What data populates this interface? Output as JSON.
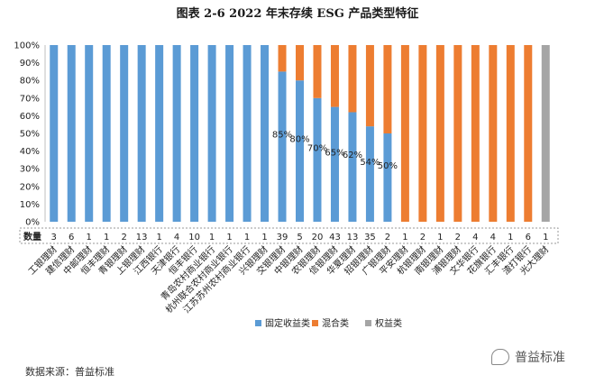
{
  "chart_data": {
    "type": "bar",
    "stacked": true,
    "title": "图表 2-6  2022 年末存续 ESG 产品类型特征",
    "ylim": [
      0,
      100
    ],
    "y_ticks": [
      "0%",
      "10%",
      "20%",
      "30%",
      "40%",
      "50%",
      "60%",
      "70%",
      "80%",
      "90%",
      "100%"
    ],
    "grid": false,
    "legend_position": "bottom",
    "count_row_label": "数量",
    "categories": [
      "工银理财",
      "建信理财",
      "中邮理财",
      "恒丰理财",
      "青银理财",
      "上银理财",
      "江西银行",
      "天津银行",
      "恒丰银行",
      "青岛农村商业银行",
      "杭州联合农村商业银行",
      "江苏苏州农村商业银行",
      "兴银理财",
      "交银理财",
      "中银理财",
      "农银理财",
      "信银理财",
      "华夏理财",
      "招银理财",
      "广银理财",
      "平安理财",
      "杭银理财",
      "南银理财",
      "浦银理财",
      "文华银行",
      "花旗银行",
      "汇丰银行",
      "渣打银行",
      "光大理财"
    ],
    "counts": [
      "3",
      "6",
      "1",
      "1",
      "2",
      "13",
      "1",
      "4",
      "10",
      "1",
      "1",
      "1",
      "1",
      "39",
      "5",
      "20",
      "43",
      "13",
      "35",
      "2",
      "1",
      "2",
      "1",
      "2",
      "4",
      "4",
      "1",
      "6",
      "1"
    ],
    "series": [
      {
        "name": "固定收益类",
        "color": "#5b9bd5",
        "values": [
          100,
          100,
          100,
          100,
          100,
          100,
          100,
          100,
          100,
          100,
          100,
          100,
          100,
          85,
          80,
          70,
          65,
          62,
          54,
          50,
          0,
          0,
          0,
          0,
          0,
          0,
          0,
          0,
          0
        ]
      },
      {
        "name": "混合类",
        "color": "#ed7d31",
        "values": [
          0,
          0,
          0,
          0,
          0,
          0,
          0,
          0,
          0,
          0,
          0,
          0,
          0,
          15,
          20,
          30,
          35,
          38,
          46,
          50,
          100,
          100,
          100,
          100,
          100,
          100,
          100,
          100,
          0
        ]
      },
      {
        "name": "权益类",
        "color": "#a5a5a5",
        "values": [
          0,
          0,
          0,
          0,
          0,
          0,
          0,
          0,
          0,
          0,
          0,
          0,
          0,
          0,
          0,
          0,
          0,
          0,
          0,
          0,
          0,
          0,
          0,
          0,
          0,
          0,
          0,
          0,
          100
        ]
      }
    ],
    "data_labels": [
      {
        "index": 13,
        "text": "85%"
      },
      {
        "index": 14,
        "text": "80%"
      },
      {
        "index": 15,
        "text": "70%"
      },
      {
        "index": 16,
        "text": "65%"
      },
      {
        "index": 17,
        "text": "62%"
      },
      {
        "index": 18,
        "text": "54%"
      },
      {
        "index": 19,
        "text": "50%"
      }
    ]
  },
  "source_note": "数据来源：普益标准",
  "watermark": "普益标准",
  "watermark_icon": "wechat-icon"
}
